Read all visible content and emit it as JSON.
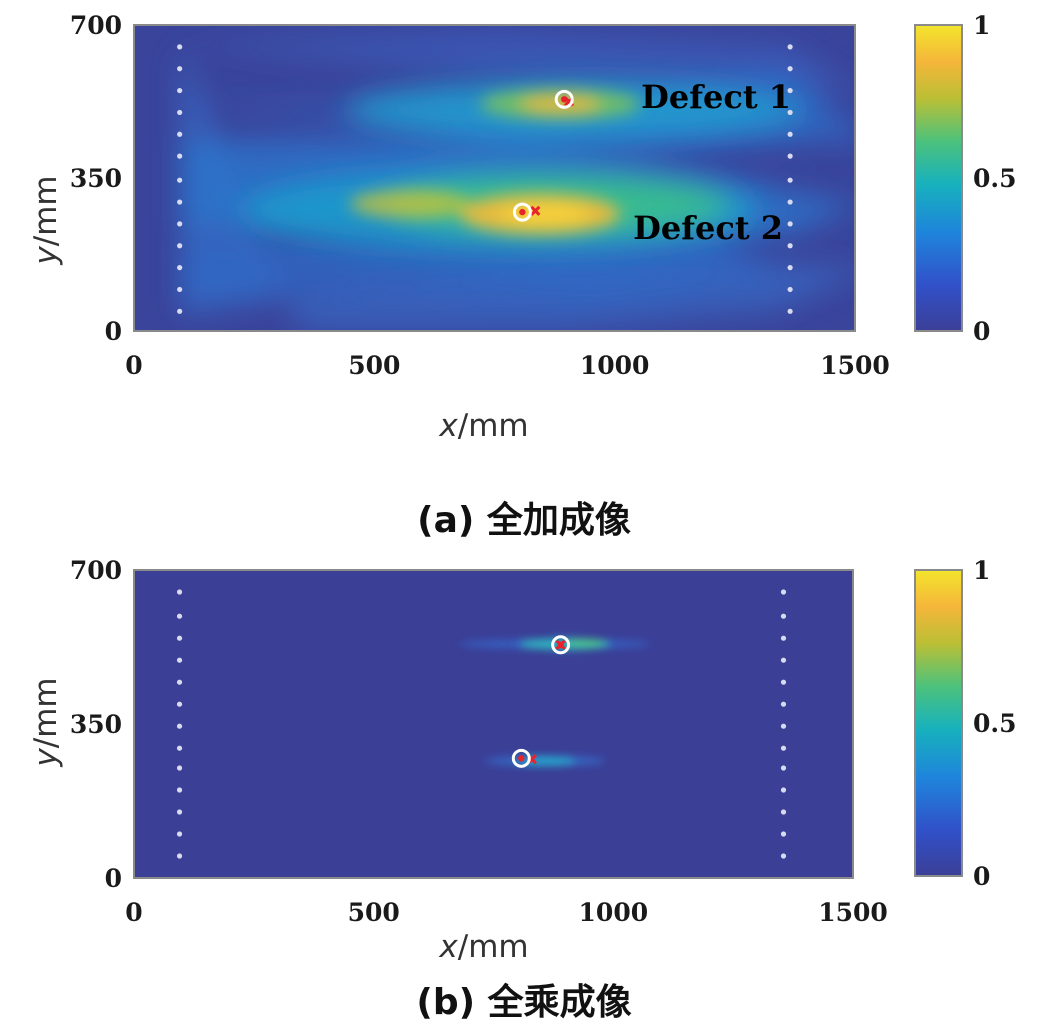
{
  "chart_data": [
    {
      "type": "heatmap",
      "panel": "a",
      "caption": "(a) 全加成像",
      "xlabel_var": "x",
      "xlabel_unit": "/mm",
      "ylabel_var": "y",
      "ylabel_unit": "/mm",
      "xlim": [
        0,
        1500
      ],
      "ylim": [
        0,
        700
      ],
      "xticks": [
        "0",
        "500",
        "1000",
        "1500"
      ],
      "xtick_values": [
        0,
        500,
        1000,
        1500
      ],
      "yticks": [
        "0",
        "350",
        "700"
      ],
      "ytick_values": [
        0,
        350,
        700
      ],
      "colorbar_range": [
        0,
        1
      ],
      "colorbar_ticks": [
        "0",
        "0.5",
        "1"
      ],
      "colorbar_tick_values": [
        0,
        0.5,
        1
      ],
      "sensor_columns_x": [
        95,
        1365
      ],
      "sensor_y_values": [
        45,
        95,
        145,
        195,
        245,
        295,
        345,
        400,
        450,
        500,
        550,
        600,
        650
      ],
      "background_level": 0.05,
      "defects": [
        {
          "label": "Defect 1",
          "true_x": 895,
          "true_y": 530,
          "estimated_x": 905,
          "estimated_y": 525
        },
        {
          "label": "Defect 2",
          "true_x": 808,
          "true_y": 272,
          "estimated_x": 835,
          "estimated_y": 275
        }
      ],
      "hotspots": [
        {
          "x": 870,
          "y": 520,
          "peak": 0.78
        },
        {
          "x": 835,
          "y": 272,
          "peak": 0.95
        },
        {
          "x": 740,
          "y": 290,
          "peak": 0.45
        }
      ]
    },
    {
      "type": "heatmap",
      "panel": "b",
      "caption": "(b) 全乘成像",
      "xlabel_var": "x",
      "xlabel_unit": "/mm",
      "ylabel_var": "y",
      "ylabel_unit": "/mm",
      "xlim": [
        0,
        1500
      ],
      "ylim": [
        0,
        700
      ],
      "xticks": [
        "0",
        "500",
        "1000",
        "1500"
      ],
      "xtick_values": [
        0,
        500,
        1000,
        1500
      ],
      "yticks": [
        "0",
        "350",
        "700"
      ],
      "ytick_values": [
        0,
        350,
        700
      ],
      "colorbar_range": [
        0,
        1
      ],
      "colorbar_ticks": [
        "0",
        "0.5",
        "1"
      ],
      "colorbar_tick_values": [
        0,
        0.5,
        1
      ],
      "sensor_columns_x": [
        95,
        1355
      ],
      "sensor_y_values": [
        50,
        100,
        150,
        200,
        250,
        295,
        345,
        395,
        445,
        495,
        545,
        595,
        650
      ],
      "background_level": 0.0,
      "defects": [
        {
          "label": "",
          "true_x": 890,
          "true_y": 530,
          "estimated_x": 890,
          "estimated_y": 530
        },
        {
          "label": "",
          "true_x": 808,
          "true_y": 272,
          "estimated_x": 830,
          "estimated_y": 270
        }
      ],
      "hotspots": [
        {
          "x": 890,
          "y": 530,
          "peak": 0.45
        },
        {
          "x": 830,
          "y": 270,
          "peak": 0.35
        }
      ]
    }
  ]
}
